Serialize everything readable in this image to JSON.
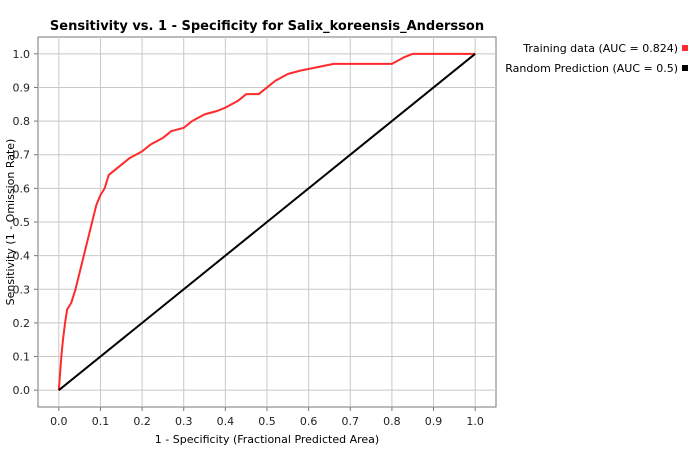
{
  "chart_data": {
    "type": "line",
    "title": "Sensitivity vs. 1 - Specificity for Salix_koreensis_Andersson",
    "xlabel": "1 - Specificity  (Fractional Predicted Area)",
    "ylabel": "Sensitivity  (1 - Omission Rate)",
    "xlim": [
      -0.05,
      1.05
    ],
    "ylim": [
      -0.05,
      1.05
    ],
    "xticks": [
      "0.0",
      "0.1",
      "0.2",
      "0.3",
      "0.4",
      "0.5",
      "0.6",
      "0.7",
      "0.8",
      "0.9",
      "1.0"
    ],
    "yticks": [
      "0.0",
      "0.1",
      "0.2",
      "0.3",
      "0.4",
      "0.5",
      "0.6",
      "0.7",
      "0.8",
      "0.9",
      "1.0"
    ],
    "grid": true,
    "legend_position": "right",
    "series": [
      {
        "name": "Training data (AUC = 0.824)",
        "color": "#ff2a2a",
        "x": [
          0,
          0.003,
          0.006,
          0.01,
          0.015,
          0.02,
          0.03,
          0.04,
          0.05,
          0.06,
          0.07,
          0.08,
          0.09,
          0.1,
          0.11,
          0.12,
          0.13,
          0.15,
          0.17,
          0.2,
          0.22,
          0.25,
          0.27,
          0.3,
          0.32,
          0.35,
          0.38,
          0.4,
          0.43,
          0.45,
          0.48,
          0.5,
          0.52,
          0.55,
          0.58,
          0.62,
          0.66,
          0.7,
          0.75,
          0.8,
          0.83,
          0.85,
          1.0
        ],
        "y": [
          0,
          0.05,
          0.1,
          0.15,
          0.2,
          0.24,
          0.26,
          0.3,
          0.35,
          0.4,
          0.45,
          0.5,
          0.55,
          0.58,
          0.6,
          0.64,
          0.65,
          0.67,
          0.69,
          0.71,
          0.73,
          0.75,
          0.77,
          0.78,
          0.8,
          0.82,
          0.83,
          0.84,
          0.86,
          0.88,
          0.88,
          0.9,
          0.92,
          0.94,
          0.95,
          0.96,
          0.97,
          0.97,
          0.97,
          0.97,
          0.99,
          1.0,
          1.0
        ]
      },
      {
        "name": "Random Prediction (AUC = 0.5)",
        "color": "#000000",
        "x": [
          0,
          1
        ],
        "y": [
          0,
          1
        ]
      }
    ]
  }
}
